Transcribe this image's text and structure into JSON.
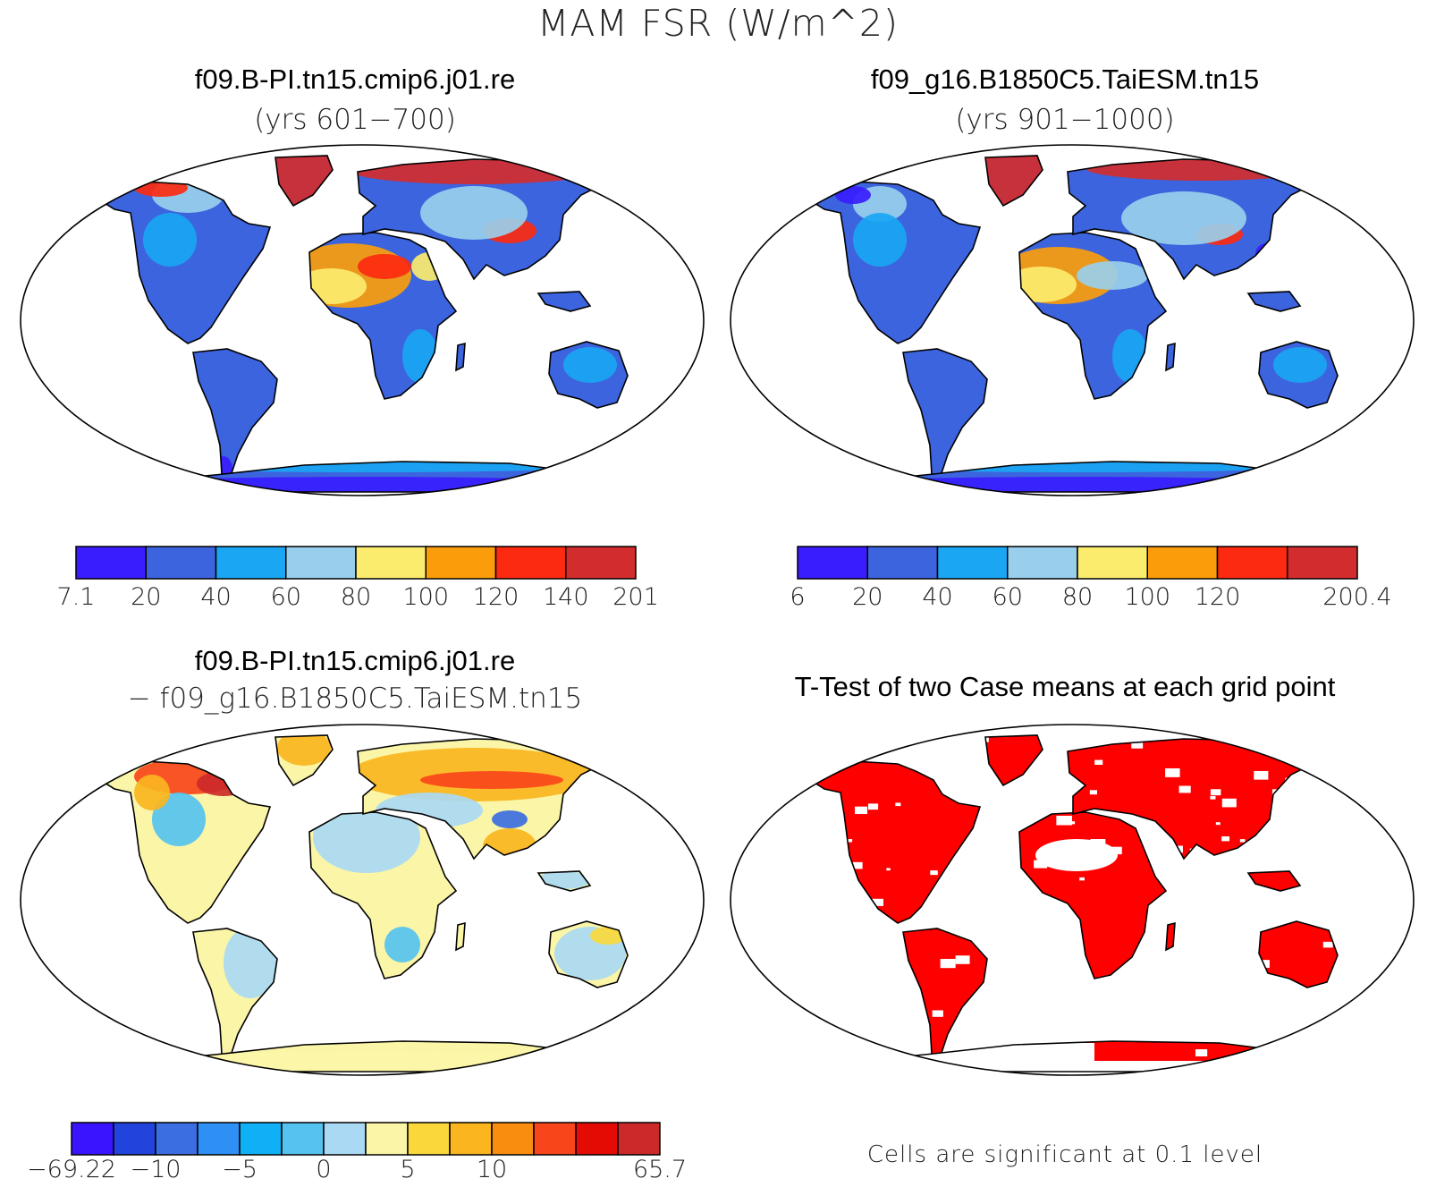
{
  "title": "MAM FSR (W/m^2)",
  "colors": {
    "seq": [
      "#3a1dff",
      "#3c64de",
      "#1aa6f3",
      "#99cfec",
      "#fcec6e",
      "#fb9d0b",
      "#fc2a10",
      "#d22c2e"
    ],
    "diff": [
      "#3a14ff",
      "#2244dd",
      "#3b6ee0",
      "#2e8ff5",
      "#0fb0f5",
      "#55c2ef",
      "#a9d9f3",
      "#fbf5a8",
      "#fad83c",
      "#fab51f",
      "#f98d10",
      "#f8451a",
      "#e50b05",
      "#cc2a2a"
    ],
    "significant": "#ff0000",
    "coast": "#000000"
  },
  "panels": [
    {
      "id": "case1",
      "title": "f09.B-PI.tn15.cmip6.j01.re",
      "subtitle": "(yrs 601−700)",
      "colorbar": {
        "levels": [
          "7.1",
          "20",
          "40",
          "60",
          "80",
          "100",
          "120",
          "140",
          "201"
        ]
      }
    },
    {
      "id": "case2",
      "title": "f09_g16.B1850C5.TaiESM.tn15",
      "subtitle": "(yrs 901−1000)",
      "colorbar": {
        "levels": [
          "6",
          "20",
          "40",
          "60",
          "80",
          "100",
          "120",
          "",
          "200.4"
        ]
      }
    },
    {
      "id": "diff",
      "title": "f09.B-PI.tn15.cmip6.j01.re",
      "subtitle": "− f09_g16.B1850C5.TaiESM.tn15",
      "colorbar": {
        "levels": [
          "−69.22",
          "",
          "−10",
          "",
          "−5",
          "",
          "0",
          "",
          "5",
          "",
          "10",
          "",
          "",
          "",
          "65.7"
        ]
      }
    },
    {
      "id": "ttest",
      "title": "T-Test of two Case means at each grid point",
      "note": "Cells are significant at 0.1 level"
    }
  ]
}
